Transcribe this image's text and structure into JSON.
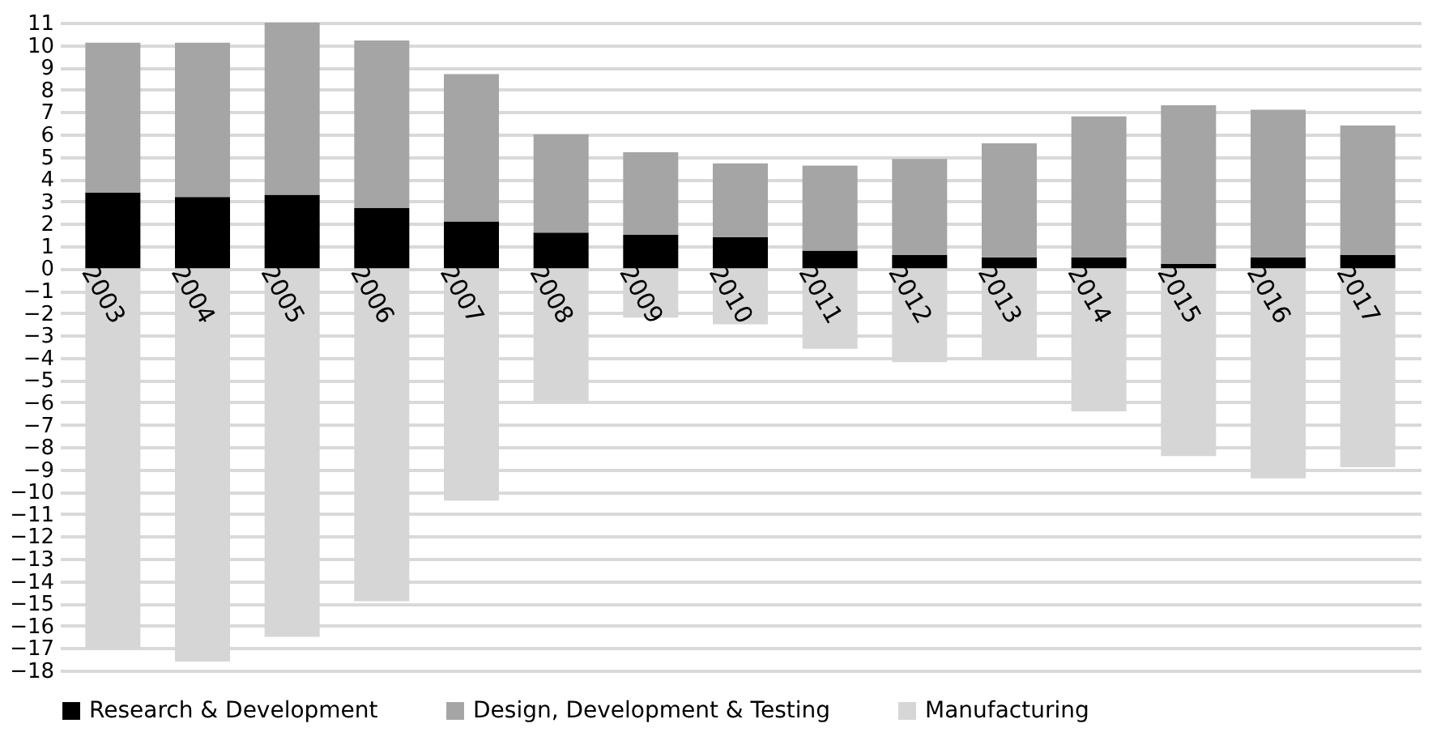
{
  "chart_data": {
    "type": "bar",
    "stacked": true,
    "categories": [
      "2003",
      "2004",
      "2005",
      "2006",
      "2007",
      "2008",
      "2009",
      "2010",
      "2011",
      "2012",
      "2013",
      "2014",
      "2015",
      "2016",
      "2017"
    ],
    "series": [
      {
        "name": "Research & Development",
        "color": "#000000",
        "values": [
          3.4,
          3.2,
          3.3,
          2.7,
          2.1,
          1.6,
          1.5,
          1.4,
          0.8,
          0.6,
          0.5,
          0.5,
          0.2,
          0.5,
          0.6
        ]
      },
      {
        "name": "Design, Development & Testing",
        "color": "#a5a5a5",
        "values": [
          6.7,
          6.9,
          7.7,
          7.5,
          6.6,
          4.4,
          3.7,
          3.3,
          3.8,
          4.3,
          5.1,
          6.3,
          7.1,
          6.6,
          5.8
        ]
      },
      {
        "name": "Manufacturing",
        "color": "#d6d6d6",
        "values": [
          -17.0,
          -17.6,
          -16.5,
          -14.9,
          -10.4,
          -6.0,
          -2.2,
          -2.5,
          -3.6,
          -4.2,
          -4.1,
          -6.4,
          -8.4,
          -9.4,
          -8.9
        ]
      }
    ],
    "ylim": [
      -18,
      11
    ],
    "yticks": [
      -18,
      -17,
      -16,
      -15,
      -14,
      -13,
      -12,
      -11,
      -10,
      -9,
      -8,
      -7,
      -6,
      -5,
      -4,
      -3,
      -2,
      -1,
      0,
      1,
      2,
      3,
      4,
      5,
      6,
      7,
      8,
      9,
      10,
      11
    ],
    "grid": "y",
    "legend": "bottom"
  }
}
